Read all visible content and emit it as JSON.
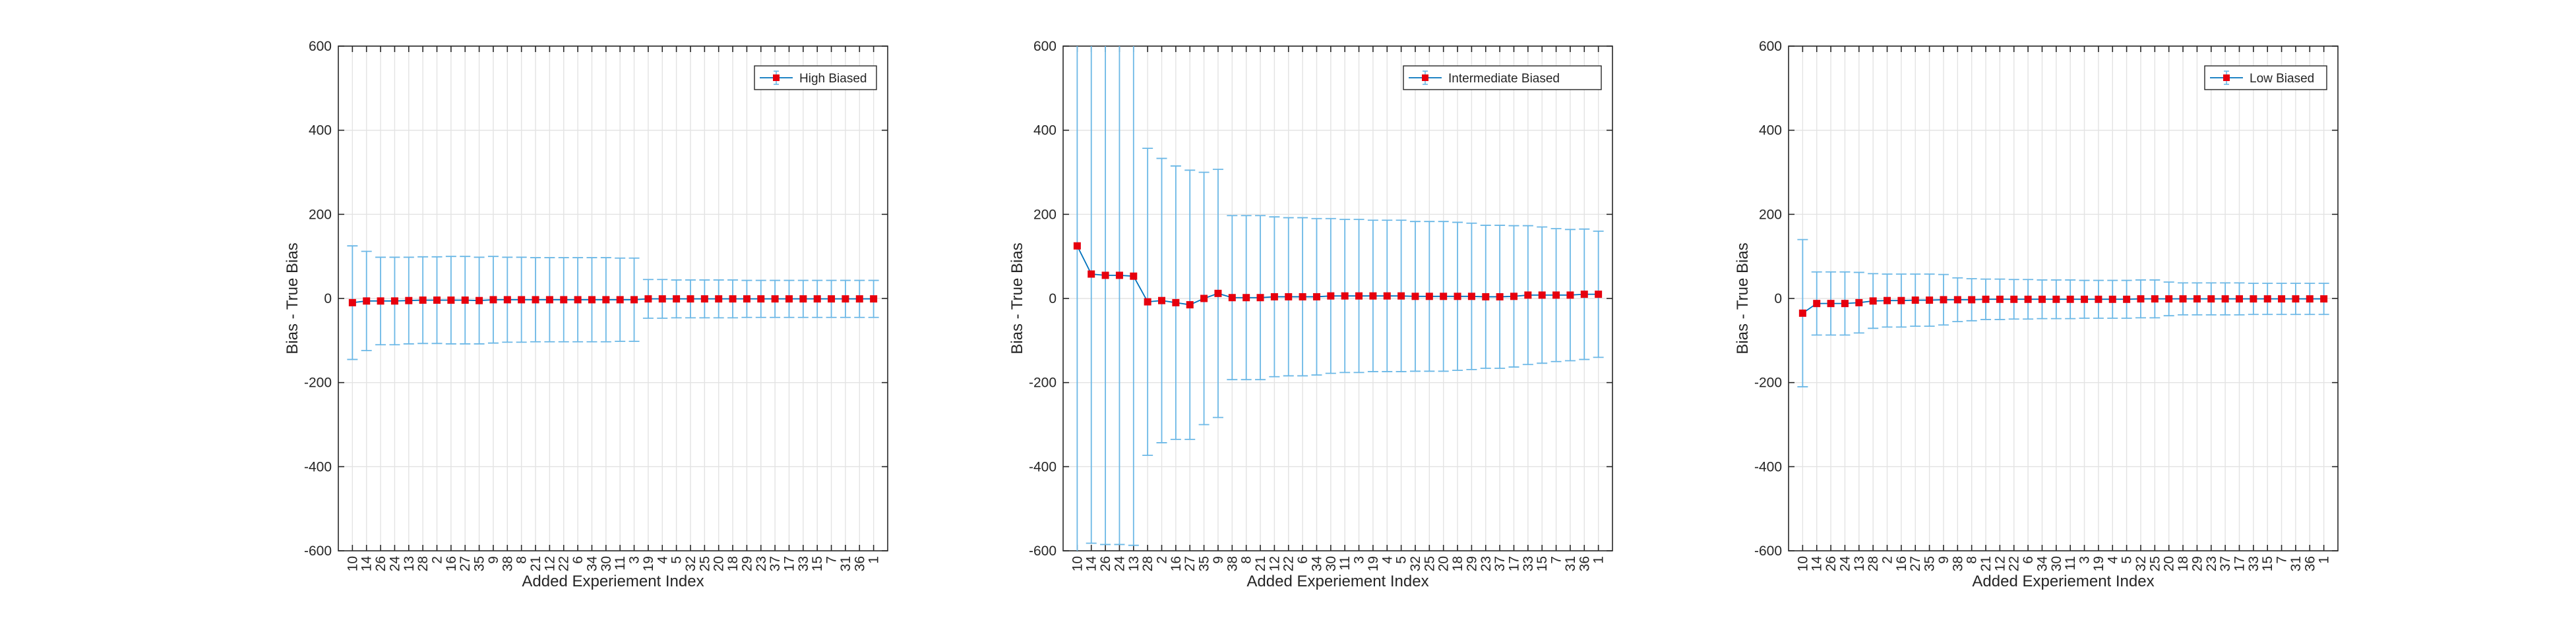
{
  "chart_data": [
    {
      "type": "line",
      "legend": "High Biased",
      "legend_position": "top-right",
      "xlabel": "Added Experiement Index",
      "ylabel": "Bias - True Bias",
      "ylim": [
        -600,
        600
      ],
      "yticks": [
        -600,
        -400,
        -200,
        0,
        200,
        400,
        600
      ],
      "grid": true,
      "categories": [
        "10",
        "14",
        "26",
        "24",
        "13",
        "28",
        "2",
        "16",
        "27",
        "35",
        "9",
        "38",
        "8",
        "21",
        "12",
        "22",
        "6",
        "34",
        "30",
        "11",
        "3",
        "19",
        "4",
        "5",
        "32",
        "25",
        "20",
        "18",
        "29",
        "23",
        "37",
        "17",
        "33",
        "15",
        "7",
        "31",
        "36",
        "1"
      ],
      "values": [
        -10,
        -6,
        -6,
        -6,
        -5,
        -4,
        -4,
        -4,
        -4,
        -5,
        -3,
        -3,
        -3,
        -3,
        -3,
        -3,
        -3,
        -3,
        -3,
        -3,
        -3,
        -1,
        -1,
        -1,
        -1,
        -1,
        -1,
        -1,
        -1,
        -1,
        -1,
        -1,
        -1,
        -1,
        -1,
        -1,
        -1,
        -1
      ],
      "error": [
        135,
        118,
        104,
        104,
        103,
        103,
        103,
        104,
        104,
        103,
        103,
        101,
        101,
        100,
        100,
        100,
        100,
        100,
        100,
        99,
        99,
        46,
        46,
        45,
        45,
        45,
        45,
        45,
        44,
        44,
        44,
        44,
        44,
        44,
        44,
        44,
        44,
        44
      ]
    },
    {
      "type": "line",
      "legend": "Intermediate Biased",
      "legend_position": "top-right",
      "xlabel": "Added Experiement Index",
      "ylabel": "Bias - True Bias",
      "ylim": [
        -600,
        600
      ],
      "yticks": [
        -600,
        -400,
        -200,
        0,
        200,
        400,
        600
      ],
      "grid": true,
      "categories": [
        "10",
        "14",
        "26",
        "24",
        "13",
        "28",
        "2",
        "16",
        "27",
        "35",
        "9",
        "38",
        "8",
        "21",
        "12",
        "22",
        "6",
        "34",
        "30",
        "11",
        "3",
        "19",
        "4",
        "5",
        "32",
        "25",
        "20",
        "18",
        "29",
        "23",
        "37",
        "17",
        "33",
        "15",
        "7",
        "31",
        "36",
        "1"
      ],
      "values": [
        125,
        58,
        55,
        55,
        53,
        -8,
        -5,
        -10,
        -15,
        0,
        12,
        2,
        2,
        2,
        4,
        4,
        4,
        4,
        6,
        6,
        6,
        6,
        6,
        6,
        5,
        5,
        5,
        5,
        5,
        4,
        4,
        5,
        8,
        8,
        8,
        8,
        10,
        10
      ],
      "error": [
        750,
        640,
        640,
        640,
        640,
        365,
        338,
        325,
        320,
        300,
        295,
        195,
        195,
        195,
        190,
        188,
        188,
        186,
        184,
        182,
        182,
        180,
        180,
        180,
        178,
        178,
        178,
        176,
        174,
        170,
        170,
        168,
        165,
        162,
        158,
        156,
        155,
        150
      ]
    },
    {
      "type": "line",
      "legend": "Low Biased",
      "legend_position": "top-right",
      "xlabel": "Added Experiement Index",
      "ylabel": "Bias - True Bias",
      "ylim": [
        -600,
        600
      ],
      "yticks": [
        -600,
        -400,
        -200,
        0,
        200,
        400,
        600
      ],
      "grid": true,
      "categories": [
        "10",
        "14",
        "26",
        "24",
        "13",
        "28",
        "2",
        "16",
        "27",
        "35",
        "9",
        "38",
        "8",
        "21",
        "12",
        "22",
        "6",
        "34",
        "30",
        "11",
        "3",
        "19",
        "4",
        "5",
        "32",
        "25",
        "20",
        "18",
        "29",
        "23",
        "37",
        "17",
        "33",
        "15",
        "7",
        "31",
        "36",
        "1"
      ],
      "values": [
        -35,
        -12,
        -12,
        -12,
        -10,
        -6,
        -5,
        -5,
        -4,
        -4,
        -3,
        -3,
        -3,
        -2,
        -2,
        -2,
        -2,
        -2,
        -2,
        -2,
        -2,
        -2,
        -2,
        -2,
        -1,
        -1,
        -1,
        -1,
        -1,
        -1,
        -1,
        -1,
        -1,
        -1,
        -1,
        -1,
        -1,
        -1
      ],
      "error": [
        175,
        75,
        75,
        75,
        72,
        65,
        63,
        63,
        62,
        62,
        60,
        52,
        50,
        48,
        48,
        47,
        47,
        46,
        46,
        46,
        45,
        45,
        45,
        45,
        45,
        45,
        40,
        38,
        38,
        38,
        38,
        38,
        37,
        37,
        37,
        37,
        37,
        37
      ]
    }
  ],
  "colors": {
    "line": "#0072BD",
    "errorbar": "#6CB8E6",
    "marker": "#E6000E",
    "grid": "#e3e3e3",
    "axis": "#262626"
  }
}
